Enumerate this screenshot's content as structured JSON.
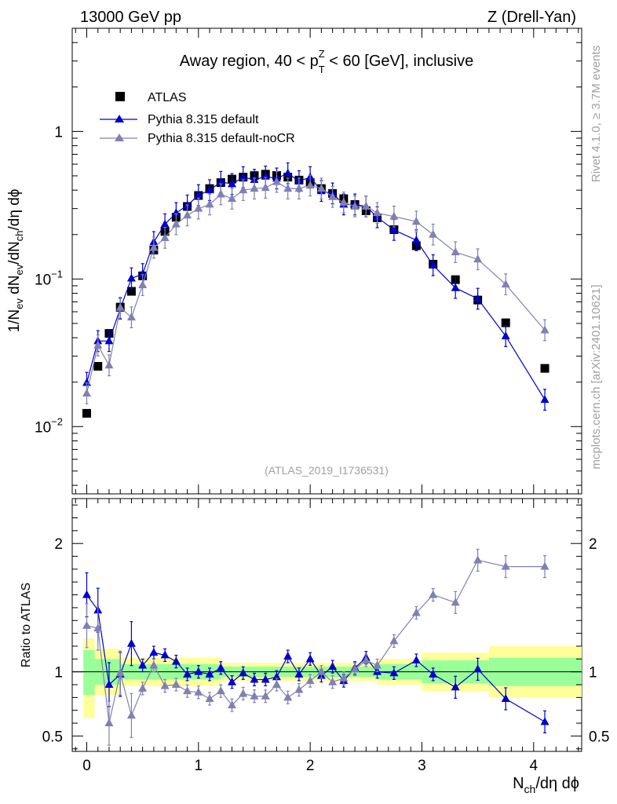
{
  "header": {
    "left": "13000 GeV pp",
    "right": "Z (Drell-Yan)"
  },
  "side_labels": {
    "rivet": "Rivet 4.1.0, ≥ 3.7M events",
    "mcplots": "mcplots.cern.ch [arXiv:2401.10621]"
  },
  "colors": {
    "data": "#000000",
    "default": "#0000cc",
    "nocr": "#8080b3",
    "band_inner": "#99ff99",
    "band_outer": "#ffff99"
  },
  "chart_data": [
    {
      "type": "line",
      "title_prefix": "Away region, 40 < p",
      "title_sup": "Z",
      "title_sub": "T",
      "title_suffix": " < 60 [GeV], inclusive",
      "analysis_label": "(ATLAS_2019_I1736531)",
      "ylabel": "1/N_ev dN_ev/dN_ch/dη dϕ",
      "yscale": "log",
      "ylim": [
        0.0035,
        5
      ],
      "xlim": [
        -0.13,
        4.43
      ],
      "y_ticks": [
        {
          "value": 1,
          "base": "1",
          "exp": ""
        },
        {
          "value": 0.1,
          "base": "10",
          "exp": "−1"
        },
        {
          "value": 0.01,
          "base": "10",
          "exp": "−2"
        }
      ],
      "legend": [
        {
          "name": "ATLAS",
          "marker": "square",
          "color": "#000000"
        },
        {
          "name": "Pythia 8.315 default",
          "marker": "triangle",
          "color": "#0000cc"
        },
        {
          "name": "Pythia 8.315 default-noCR",
          "marker": "triangle",
          "color": "#8080b3"
        }
      ],
      "x": [
        0,
        0.1,
        0.2,
        0.3,
        0.4,
        0.5,
        0.6,
        0.7,
        0.8,
        0.9,
        1.0,
        1.1,
        1.2,
        1.3,
        1.4,
        1.5,
        1.6,
        1.7,
        1.8,
        1.9,
        2.0,
        2.1,
        2.2,
        2.3,
        2.4,
        2.5,
        2.6,
        2.75,
        2.95,
        3.1,
        3.3,
        3.5,
        3.75,
        4.1
      ],
      "series": [
        {
          "name": "ATLAS",
          "values": [
            0.0123,
            0.0256,
            0.0428,
            0.0645,
            0.0825,
            0.105,
            0.157,
            0.21,
            0.262,
            0.31,
            0.368,
            0.41,
            0.45,
            0.475,
            0.49,
            0.502,
            0.513,
            0.503,
            0.49,
            0.468,
            0.45,
            0.41,
            0.38,
            0.35,
            0.32,
            0.29,
            0.26,
            0.216,
            0.168,
            0.126,
            0.099,
            0.072,
            0.0505,
            0.0248
          ]
        },
        {
          "name": "Pythia 8.315 default",
          "values": [
            0.0198,
            0.038,
            0.038,
            0.063,
            0.101,
            0.108,
            0.178,
            0.235,
            0.28,
            0.315,
            0.37,
            0.4,
            0.455,
            0.44,
            0.49,
            0.47,
            0.495,
            0.48,
            0.52,
            0.46,
            0.49,
            0.395,
            0.38,
            0.32,
            0.32,
            0.31,
            0.262,
            0.215,
            0.183,
            0.124,
            0.087,
            0.0735,
            0.041,
            0.0152
          ]
        },
        {
          "name": "Pythia 8.315 default-noCR",
          "values": [
            0.0168,
            0.0355,
            0.026,
            0.064,
            0.055,
            0.091,
            0.163,
            0.19,
            0.235,
            0.27,
            0.3,
            0.32,
            0.375,
            0.35,
            0.4,
            0.41,
            0.415,
            0.455,
            0.41,
            0.41,
            0.43,
            0.41,
            0.36,
            0.33,
            0.31,
            0.31,
            0.28,
            0.265,
            0.245,
            0.2,
            0.152,
            0.136,
            0.092,
            0.045
          ]
        }
      ]
    },
    {
      "type": "line",
      "ylabel": "Ratio to ATLAS",
      "xlabel": "N_ch/dη dϕ",
      "ylim": [
        0.38,
        2.35
      ],
      "xlim": [
        -0.13,
        4.43
      ],
      "x_ticks": [
        0,
        1,
        2,
        3,
        4
      ],
      "y_ticks": [
        0.5,
        1,
        2
      ],
      "x": [
        0,
        0.1,
        0.2,
        0.3,
        0.4,
        0.5,
        0.6,
        0.7,
        0.8,
        0.9,
        1.0,
        1.1,
        1.2,
        1.3,
        1.4,
        1.5,
        1.6,
        1.7,
        1.8,
        1.9,
        2.0,
        2.1,
        2.2,
        2.3,
        2.4,
        2.5,
        2.6,
        2.75,
        2.95,
        3.1,
        3.3,
        3.5,
        3.75,
        4.1
      ],
      "series": [
        {
          "name": "Pythia 8.315 default",
          "values": [
            1.6,
            1.48,
            0.9,
            0.98,
            1.22,
            1.05,
            1.15,
            1.13,
            1.08,
            0.98,
            1.0,
            0.98,
            1.03,
            0.92,
            0.99,
            0.94,
            0.94,
            0.96,
            1.12,
            0.98,
            1.1,
            0.97,
            1.04,
            0.93,
            1.03,
            1.11,
            1.0,
            0.99,
            1.09,
            0.98,
            0.88,
            1.02,
            0.79,
            0.61
          ]
        },
        {
          "name": "Pythia 8.315 default-noCR",
          "values": [
            1.36,
            1.34,
            0.6,
            0.99,
            0.66,
            0.87,
            1.05,
            0.89,
            0.9,
            0.85,
            0.84,
            0.79,
            0.85,
            0.74,
            0.83,
            0.81,
            0.81,
            0.9,
            0.8,
            0.86,
            0.93,
            1.0,
            0.92,
            0.95,
            1.02,
            1.09,
            1.05,
            1.24,
            1.46,
            1.6,
            1.54,
            1.87,
            1.82,
            1.82
          ]
        }
      ],
      "bands": [
        {
          "x_start": -0.03,
          "x_end": 0.07,
          "inner": [
            0.82,
            1.17
          ],
          "outer": [
            0.64,
            1.26
          ]
        },
        {
          "x_start": 0.07,
          "x_end": 0.3,
          "inner": [
            0.9,
            1.1
          ],
          "outer": [
            0.82,
            1.18
          ]
        },
        {
          "x_start": 0.3,
          "x_end": 1.2,
          "inner": [
            0.94,
            1.06
          ],
          "outer": [
            0.89,
            1.11
          ]
        },
        {
          "x_start": 1.2,
          "x_end": 2.6,
          "inner": [
            0.96,
            1.04
          ],
          "outer": [
            0.93,
            1.07
          ]
        },
        {
          "x_start": 2.6,
          "x_end": 3.0,
          "inner": [
            0.94,
            1.06
          ],
          "outer": [
            0.9,
            1.1
          ]
        },
        {
          "x_start": 3.0,
          "x_end": 3.6,
          "inner": [
            0.91,
            1.09
          ],
          "outer": [
            0.85,
            1.15
          ]
        },
        {
          "x_start": 3.6,
          "x_end": 4.43,
          "inner": [
            0.89,
            1.11
          ],
          "outer": [
            0.8,
            1.2
          ]
        }
      ]
    }
  ]
}
